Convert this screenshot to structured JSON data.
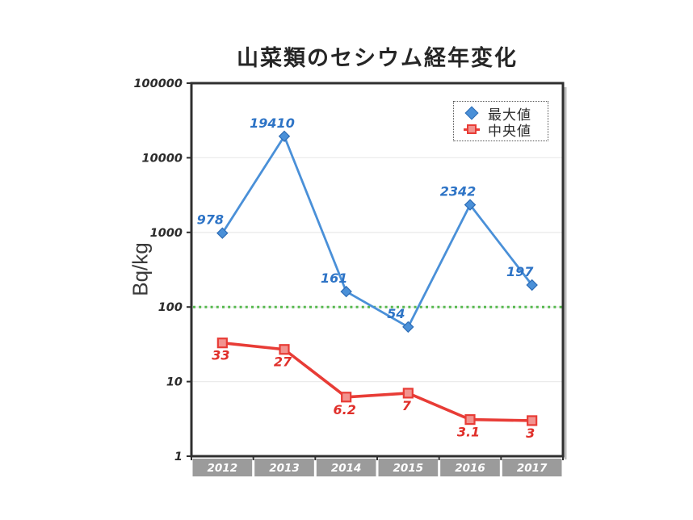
{
  "chart_data": {
    "type": "line",
    "title": "山菜類のセシウム経年変化",
    "ylabel": "Bq/kg",
    "xlabel": "",
    "y_scale": "log",
    "ylim": [
      1,
      100000
    ],
    "y_ticks": [
      1,
      10,
      100,
      1000,
      10000,
      100000
    ],
    "y_tick_labels": [
      "1",
      "10",
      "100",
      "1000",
      "10000",
      "100000"
    ],
    "x_categories": [
      "2012",
      "2013",
      "2014",
      "2015",
      "2016",
      "2017"
    ],
    "grid": "horizontal-major",
    "legend_position": "top-right-inside",
    "reference_line": {
      "value": 100,
      "color": "#57b94e",
      "style": "dotted"
    },
    "series": [
      {
        "name": "最大値",
        "marker": "diamond",
        "line_color": "#4a90d8",
        "marker_fill": "#4a90d8",
        "marker_stroke": "#2d6cb5",
        "label_color": "#2e74c6",
        "values": [
          978,
          19410,
          161,
          54,
          2342,
          197
        ],
        "labels": [
          "978",
          "19410",
          "161",
          "54",
          "2342",
          "197"
        ]
      },
      {
        "name": "中央値",
        "marker": "square",
        "line_color": "#e83c36",
        "marker_fill": "#f2938f",
        "marker_stroke": "#e83c36",
        "label_color": "#e02f2a",
        "values": [
          33,
          27,
          6.2,
          7,
          3.1,
          3
        ],
        "labels": [
          "33",
          "27",
          "6.2",
          "7",
          "3.1",
          "3"
        ]
      }
    ],
    "x_band": {
      "fill": "#9b9b9b",
      "text_color": "#ffffff"
    },
    "frame_color": "#2f2f2f",
    "gridline_color": "#ebebeb"
  }
}
